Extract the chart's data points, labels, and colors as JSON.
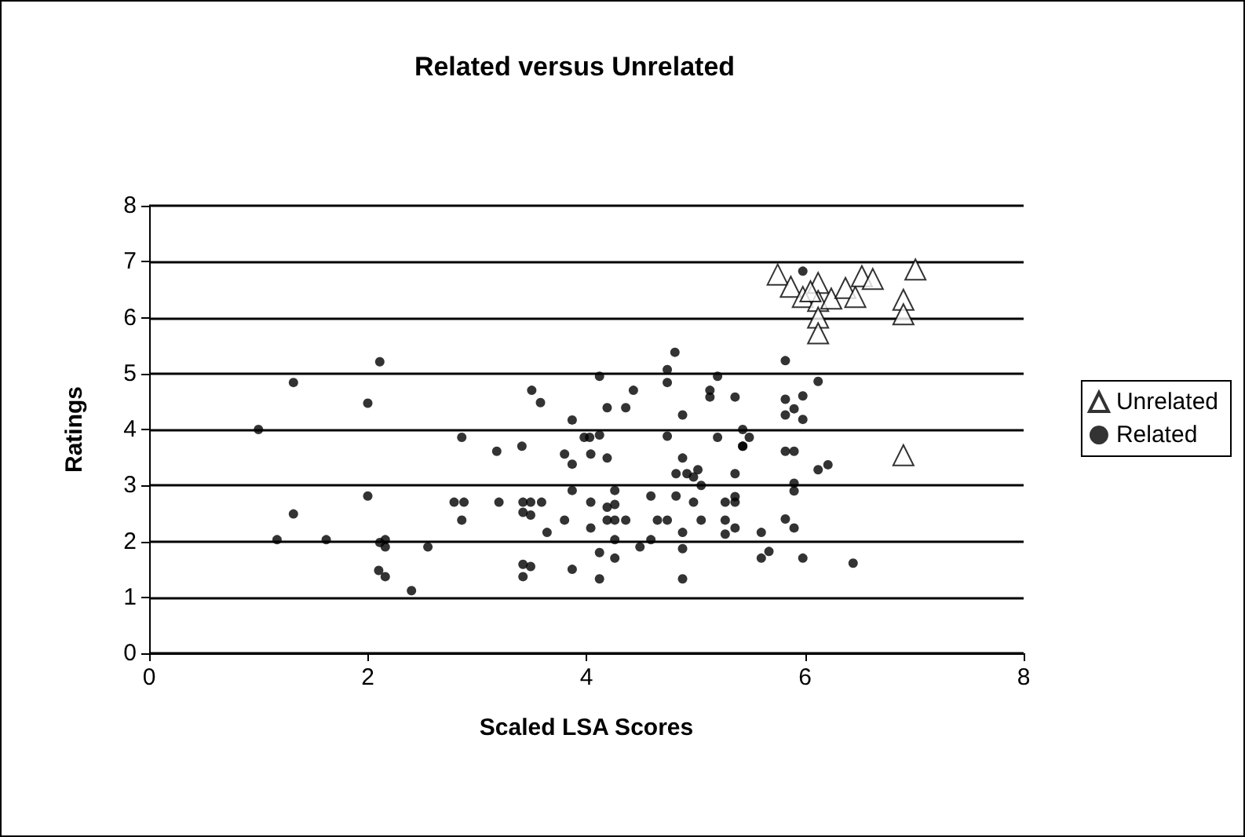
{
  "chart_data": {
    "type": "scatter",
    "title": "Related versus Unrelated",
    "xlabel": "Scaled LSA Scores",
    "ylabel": "Ratings",
    "xlim": [
      0,
      8
    ],
    "xticks": [
      0,
      2,
      4,
      6,
      8
    ],
    "ylim": [
      0,
      8
    ],
    "yticks": [
      0,
      1,
      2,
      3,
      4,
      5,
      6,
      7,
      8
    ],
    "grid": "y",
    "legend": "right",
    "series": [
      {
        "name": "Unrelated",
        "color": "#000000",
        "marker": "triangle",
        "x": [
          5.75,
          5.87,
          5.95,
          6.12,
          5.98,
          6.12,
          6.24,
          6.37,
          6.46,
          6.52,
          6.62,
          7.01,
          6.9,
          6.9,
          6.12,
          6.12,
          6.9,
          6.05
        ],
        "values": [
          6.77,
          6.55,
          null,
          6.62,
          6.37,
          6.3,
          6.34,
          6.53,
          6.37,
          6.74,
          6.69,
          6.86,
          6.32,
          6.06,
          6.0,
          5.72,
          3.54,
          6.47
        ]
      },
      {
        "name": "Related",
        "color": "#000000",
        "marker": "circle",
        "x": [
          2.11,
          1.32,
          2.0,
          1.0,
          2.0,
          1.32,
          1.17,
          1.62,
          2.16,
          2.11,
          2.16,
          2.55,
          2.1,
          2.16,
          2.4,
          2.79,
          4.81,
          4.74,
          4.74,
          4.12,
          5.2,
          3.5,
          3.58,
          4.43,
          4.19,
          4.36,
          5.13,
          5.13,
          5.36,
          4.88,
          3.87,
          2.86,
          3.98,
          4.03,
          4.12,
          4.74,
          5.2,
          5.43,
          5.43,
          3.18,
          3.41,
          3.8,
          3.87,
          4.04,
          4.19,
          4.88,
          4.82,
          4.92,
          5.02,
          4.98,
          5.05,
          5.36,
          3.87,
          4.26,
          5.36,
          2.88,
          3.2,
          3.42,
          3.49,
          3.59,
          4.04,
          4.59,
          4.82,
          4.98,
          5.27,
          5.36,
          4.19,
          4.26,
          3.42,
          3.49,
          2.86,
          3.8,
          4.19,
          4.26,
          4.36,
          4.65,
          4.74,
          5.05,
          5.27,
          5.36,
          5.27,
          3.64,
          4.04,
          4.88,
          4.26,
          4.59,
          4.49,
          4.88,
          4.12,
          4.26,
          3.42,
          3.49,
          3.42,
          3.87,
          4.12,
          4.88,
          5.82,
          6.12,
          5.82,
          5.98,
          5.82,
          5.9,
          5.98,
          5.49,
          5.43,
          5.82,
          5.9,
          6.12,
          6.21,
          5.9,
          5.9,
          5.82,
          5.9,
          5.6,
          5.6,
          5.67,
          5.98,
          6.44,
          5.98
        ],
        "values": [
          5.21,
          4.84,
          4.47,
          4.0,
          2.81,
          2.49,
          2.03,
          2.03,
          2.03,
          1.98,
          1.9,
          1.9,
          1.48,
          1.37,
          1.12,
          2.7,
          5.38,
          5.07,
          4.84,
          4.95,
          4.95,
          4.7,
          4.48,
          4.7,
          4.39,
          4.39,
          4.7,
          4.58,
          4.58,
          4.26,
          4.17,
          3.86,
          3.86,
          3.86,
          3.9,
          3.88,
          3.86,
          4.0,
          3.7,
          3.61,
          3.7,
          3.56,
          3.38,
          3.56,
          3.49,
          3.49,
          3.21,
          3.21,
          3.28,
          3.15,
          3.0,
          3.21,
          2.91,
          2.91,
          2.8,
          2.7,
          2.7,
          2.7,
          2.7,
          2.7,
          2.7,
          2.81,
          2.81,
          2.7,
          2.7,
          2.7,
          2.61,
          2.66,
          2.52,
          2.47,
          2.38,
          2.38,
          2.38,
          2.38,
          2.38,
          2.38,
          2.38,
          2.38,
          2.38,
          2.24,
          2.13,
          2.16,
          2.24,
          2.16,
          2.03,
          2.03,
          1.9,
          1.87,
          1.8,
          1.7,
          1.59,
          1.55,
          1.37,
          1.5,
          1.33,
          1.33,
          5.23,
          4.86,
          4.54,
          4.6,
          4.26,
          4.37,
          4.18,
          3.86,
          3.7,
          3.61,
          3.61,
          3.28,
          3.37,
          3.04,
          2.9,
          2.4,
          2.24,
          2.16,
          1.7,
          1.82,
          1.7,
          1.61,
          6.83
        ]
      }
    ]
  }
}
